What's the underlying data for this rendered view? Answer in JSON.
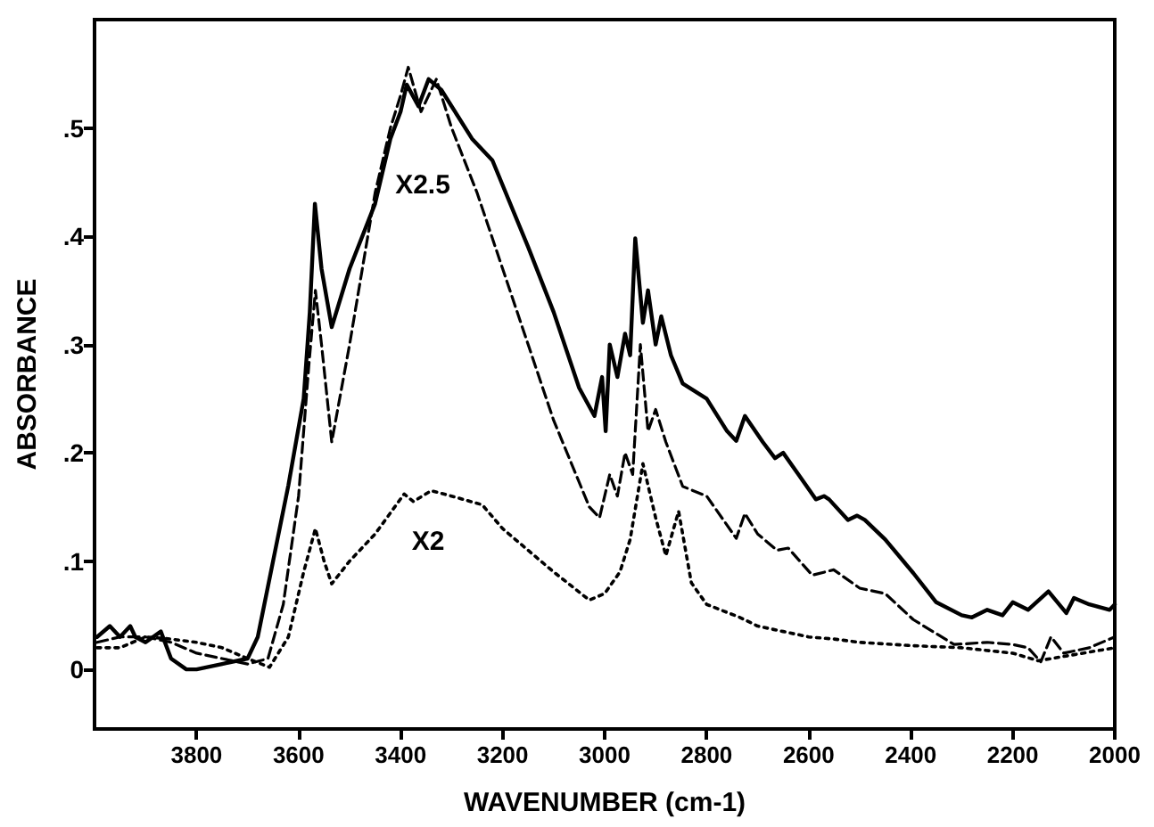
{
  "chart_data": {
    "type": "line",
    "xlabel": "WAVENUMBER (cm-1)",
    "ylabel": "ABSORBANCE",
    "xlim": [
      4000,
      2000
    ],
    "xticks": [
      3800,
      3600,
      3400,
      3200,
      3000,
      2800,
      2600,
      2400,
      2200,
      2000
    ],
    "ylim": [
      -0.055,
      0.6
    ],
    "yticks": [
      {
        "value": 0,
        "label": "0"
      },
      {
        "value": 0.1,
        "label": ".1"
      },
      {
        "value": 0.2,
        "label": ".2"
      },
      {
        "value": 0.3,
        "label": ".3"
      },
      {
        "value": 0.4,
        "label": ".4"
      },
      {
        "value": 0.5,
        "label": ".5"
      }
    ],
    "grid": false,
    "marker": "none",
    "annotations": [
      "X2.5",
      "X2"
    ],
    "series": [
      {
        "color": "#000000",
        "line_style": "solid",
        "x": [
          3995,
          3970,
          3950,
          3930,
          3920,
          3900,
          3870,
          3850,
          3820,
          3800,
          3750,
          3700,
          3680,
          3650,
          3620,
          3590,
          3578,
          3568,
          3555,
          3535,
          3500,
          3450,
          3420,
          3400,
          3388,
          3365,
          3345,
          3320,
          3300,
          3260,
          3220,
          3150,
          3100,
          3050,
          3020,
          3005,
          2998,
          2990,
          2975,
          2960,
          2950,
          2940,
          2925,
          2915,
          2900,
          2889,
          2870,
          2847,
          2800,
          2760,
          2742,
          2725,
          2690,
          2666,
          2650,
          2620,
          2586,
          2570,
          2560,
          2523,
          2505,
          2490,
          2450,
          2395,
          2350,
          2300,
          2280,
          2250,
          2220,
          2200,
          2170,
          2130,
          2095,
          2080,
          2050,
          2010,
          2000
        ],
        "values": [
          0.03,
          0.04,
          0.03,
          0.04,
          0.03,
          0.025,
          0.035,
          0.01,
          0.0,
          0.0,
          0.005,
          0.01,
          0.03,
          0.1,
          0.17,
          0.25,
          0.33,
          0.43,
          0.37,
          0.316,
          0.37,
          0.43,
          0.49,
          0.515,
          0.54,
          0.52,
          0.545,
          0.535,
          0.52,
          0.49,
          0.47,
          0.39,
          0.33,
          0.26,
          0.234,
          0.27,
          0.22,
          0.3,
          0.27,
          0.31,
          0.29,
          0.398,
          0.32,
          0.35,
          0.3,
          0.326,
          0.29,
          0.264,
          0.25,
          0.22,
          0.211,
          0.234,
          0.21,
          0.195,
          0.2,
          0.18,
          0.157,
          0.16,
          0.157,
          0.138,
          0.142,
          0.138,
          0.12,
          0.089,
          0.062,
          0.05,
          0.048,
          0.055,
          0.05,
          0.062,
          0.055,
          0.072,
          0.052,
          0.066,
          0.06,
          0.055,
          0.06
        ]
      },
      {
        "color": "#000000",
        "line_style": "dashed",
        "x": [
          3995,
          3950,
          3900,
          3850,
          3800,
          3750,
          3700,
          3660,
          3630,
          3600,
          3580,
          3567,
          3555,
          3535,
          3500,
          3450,
          3420,
          3400,
          3385,
          3360,
          3330,
          3300,
          3250,
          3200,
          3150,
          3100,
          3030,
          3010,
          2990,
          2975,
          2960,
          2945,
          2930,
          2915,
          2900,
          2880,
          2847,
          2800,
          2742,
          2725,
          2700,
          2662,
          2640,
          2593,
          2551,
          2500,
          2450,
          2395,
          2315,
          2250,
          2200,
          2170,
          2145,
          2125,
          2100,
          2050,
          2000
        ],
        "values": [
          0.025,
          0.03,
          0.03,
          0.025,
          0.015,
          0.01,
          0.005,
          0.01,
          0.06,
          0.16,
          0.28,
          0.35,
          0.3,
          0.21,
          0.3,
          0.44,
          0.5,
          0.53,
          0.556,
          0.515,
          0.545,
          0.5,
          0.44,
          0.37,
          0.3,
          0.23,
          0.15,
          0.14,
          0.18,
          0.16,
          0.2,
          0.18,
          0.3,
          0.22,
          0.24,
          0.21,
          0.169,
          0.16,
          0.121,
          0.144,
          0.125,
          0.11,
          0.112,
          0.087,
          0.092,
          0.075,
          0.07,
          0.046,
          0.023,
          0.025,
          0.023,
          0.02,
          0.007,
          0.03,
          0.015,
          0.02,
          0.03
        ]
      },
      {
        "color": "#000000",
        "line_style": "dotted",
        "x": [
          3995,
          3950,
          3900,
          3850,
          3800,
          3750,
          3700,
          3657,
          3620,
          3590,
          3567,
          3550,
          3535,
          3500,
          3450,
          3393,
          3375,
          3340,
          3300,
          3240,
          3200,
          3150,
          3100,
          3030,
          3000,
          2970,
          2950,
          2925,
          2900,
          2880,
          2855,
          2830,
          2800,
          2735,
          2700,
          2650,
          2600,
          2550,
          2500,
          2400,
          2300,
          2200,
          2150,
          2100,
          2000
        ],
        "values": [
          0.02,
          0.02,
          0.03,
          0.028,
          0.025,
          0.02,
          0.01,
          0.002,
          0.03,
          0.09,
          0.13,
          0.1,
          0.079,
          0.1,
          0.125,
          0.162,
          0.155,
          0.165,
          0.16,
          0.152,
          0.13,
          0.11,
          0.09,
          0.064,
          0.07,
          0.09,
          0.12,
          0.19,
          0.14,
          0.105,
          0.146,
          0.08,
          0.06,
          0.048,
          0.04,
          0.035,
          0.03,
          0.028,
          0.025,
          0.022,
          0.02,
          0.015,
          0.008,
          0.012,
          0.02
        ]
      }
    ]
  }
}
